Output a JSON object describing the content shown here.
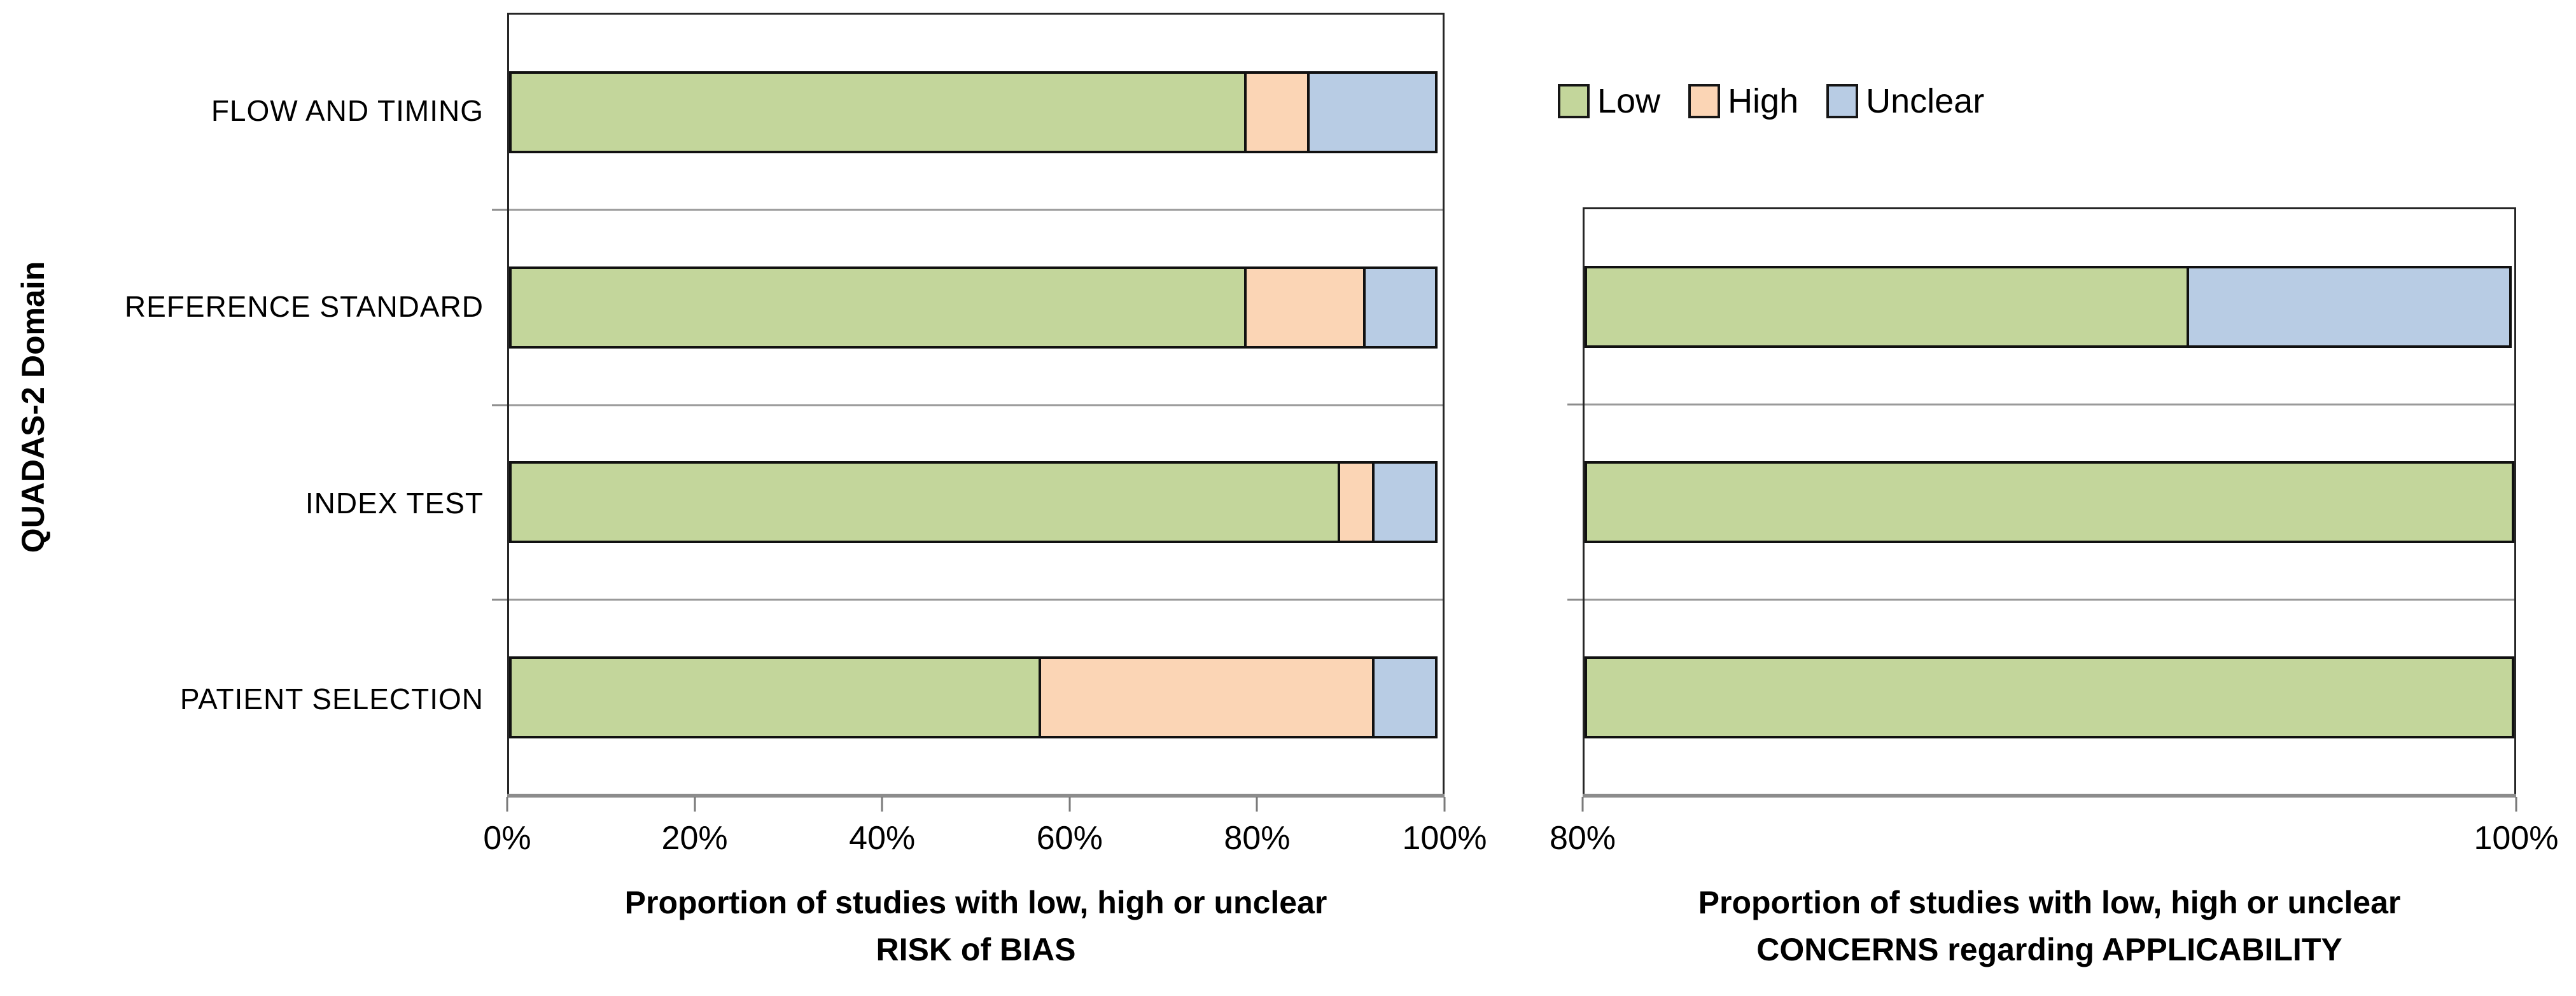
{
  "figure": {
    "background": "#ffffff",
    "colors": {
      "low": "#C3D69B",
      "high": "#FBD5B5",
      "unclear": "#B8CCE4",
      "bar_border": "#111111",
      "gridline": "#9a9a9a",
      "axis_line": "#8c8c8c"
    },
    "legend": {
      "items": [
        {
          "label": "Low",
          "color": "#C3D69B"
        },
        {
          "label": "High",
          "color": "#FBD5B5"
        },
        {
          "label": "Unclear",
          "color": "#B8CCE4"
        }
      ]
    }
  },
  "chart_data": [
    {
      "type": "bar",
      "orientation": "horizontal",
      "stacked": true,
      "ylabel": "QUADAS-2 Domain",
      "xlabel_lines": [
        "Proportion of studies with low, high or unclear",
        "RISK of BIAS"
      ],
      "categories": [
        "FLOW AND TIMING",
        "REFERENCE STANDARD",
        "INDEX TEST",
        "PATIENT SELECTION"
      ],
      "series": [
        {
          "name": "Low",
          "values": [
            79,
            79,
            89,
            57
          ]
        },
        {
          "name": "High",
          "values": [
            7,
            13,
            4,
            36
          ]
        },
        {
          "name": "Unclear",
          "values": [
            14,
            8,
            7,
            7
          ]
        }
      ],
      "xlim": [
        0,
        100
      ],
      "xticks": [
        "0%",
        "20%",
        "40%",
        "60%",
        "80%",
        "100%"
      ],
      "grid": "category-separators",
      "legend_position": "top-right-of-figure",
      "show_category_labels": true
    },
    {
      "type": "bar",
      "orientation": "horizontal",
      "stacked": true,
      "ylabel": "",
      "xlabel_lines": [
        "Proportion of studies with low, high or unclear",
        "CONCERNS regarding APPLICABILITY"
      ],
      "categories": [
        "REFERENCE STANDARD",
        "INDEX TEST",
        "PATIENT SELECTION"
      ],
      "series": [
        {
          "name": "Low",
          "values": [
            93,
            100,
            100
          ]
        },
        {
          "name": "High",
          "values": [
            0,
            0,
            0
          ]
        },
        {
          "name": "Unclear",
          "values": [
            7,
            0,
            0
          ]
        }
      ],
      "xlim": [
        80,
        100
      ],
      "xticks": [
        "80%",
        "100%"
      ],
      "grid": "category-separators",
      "show_category_labels": false
    }
  ]
}
